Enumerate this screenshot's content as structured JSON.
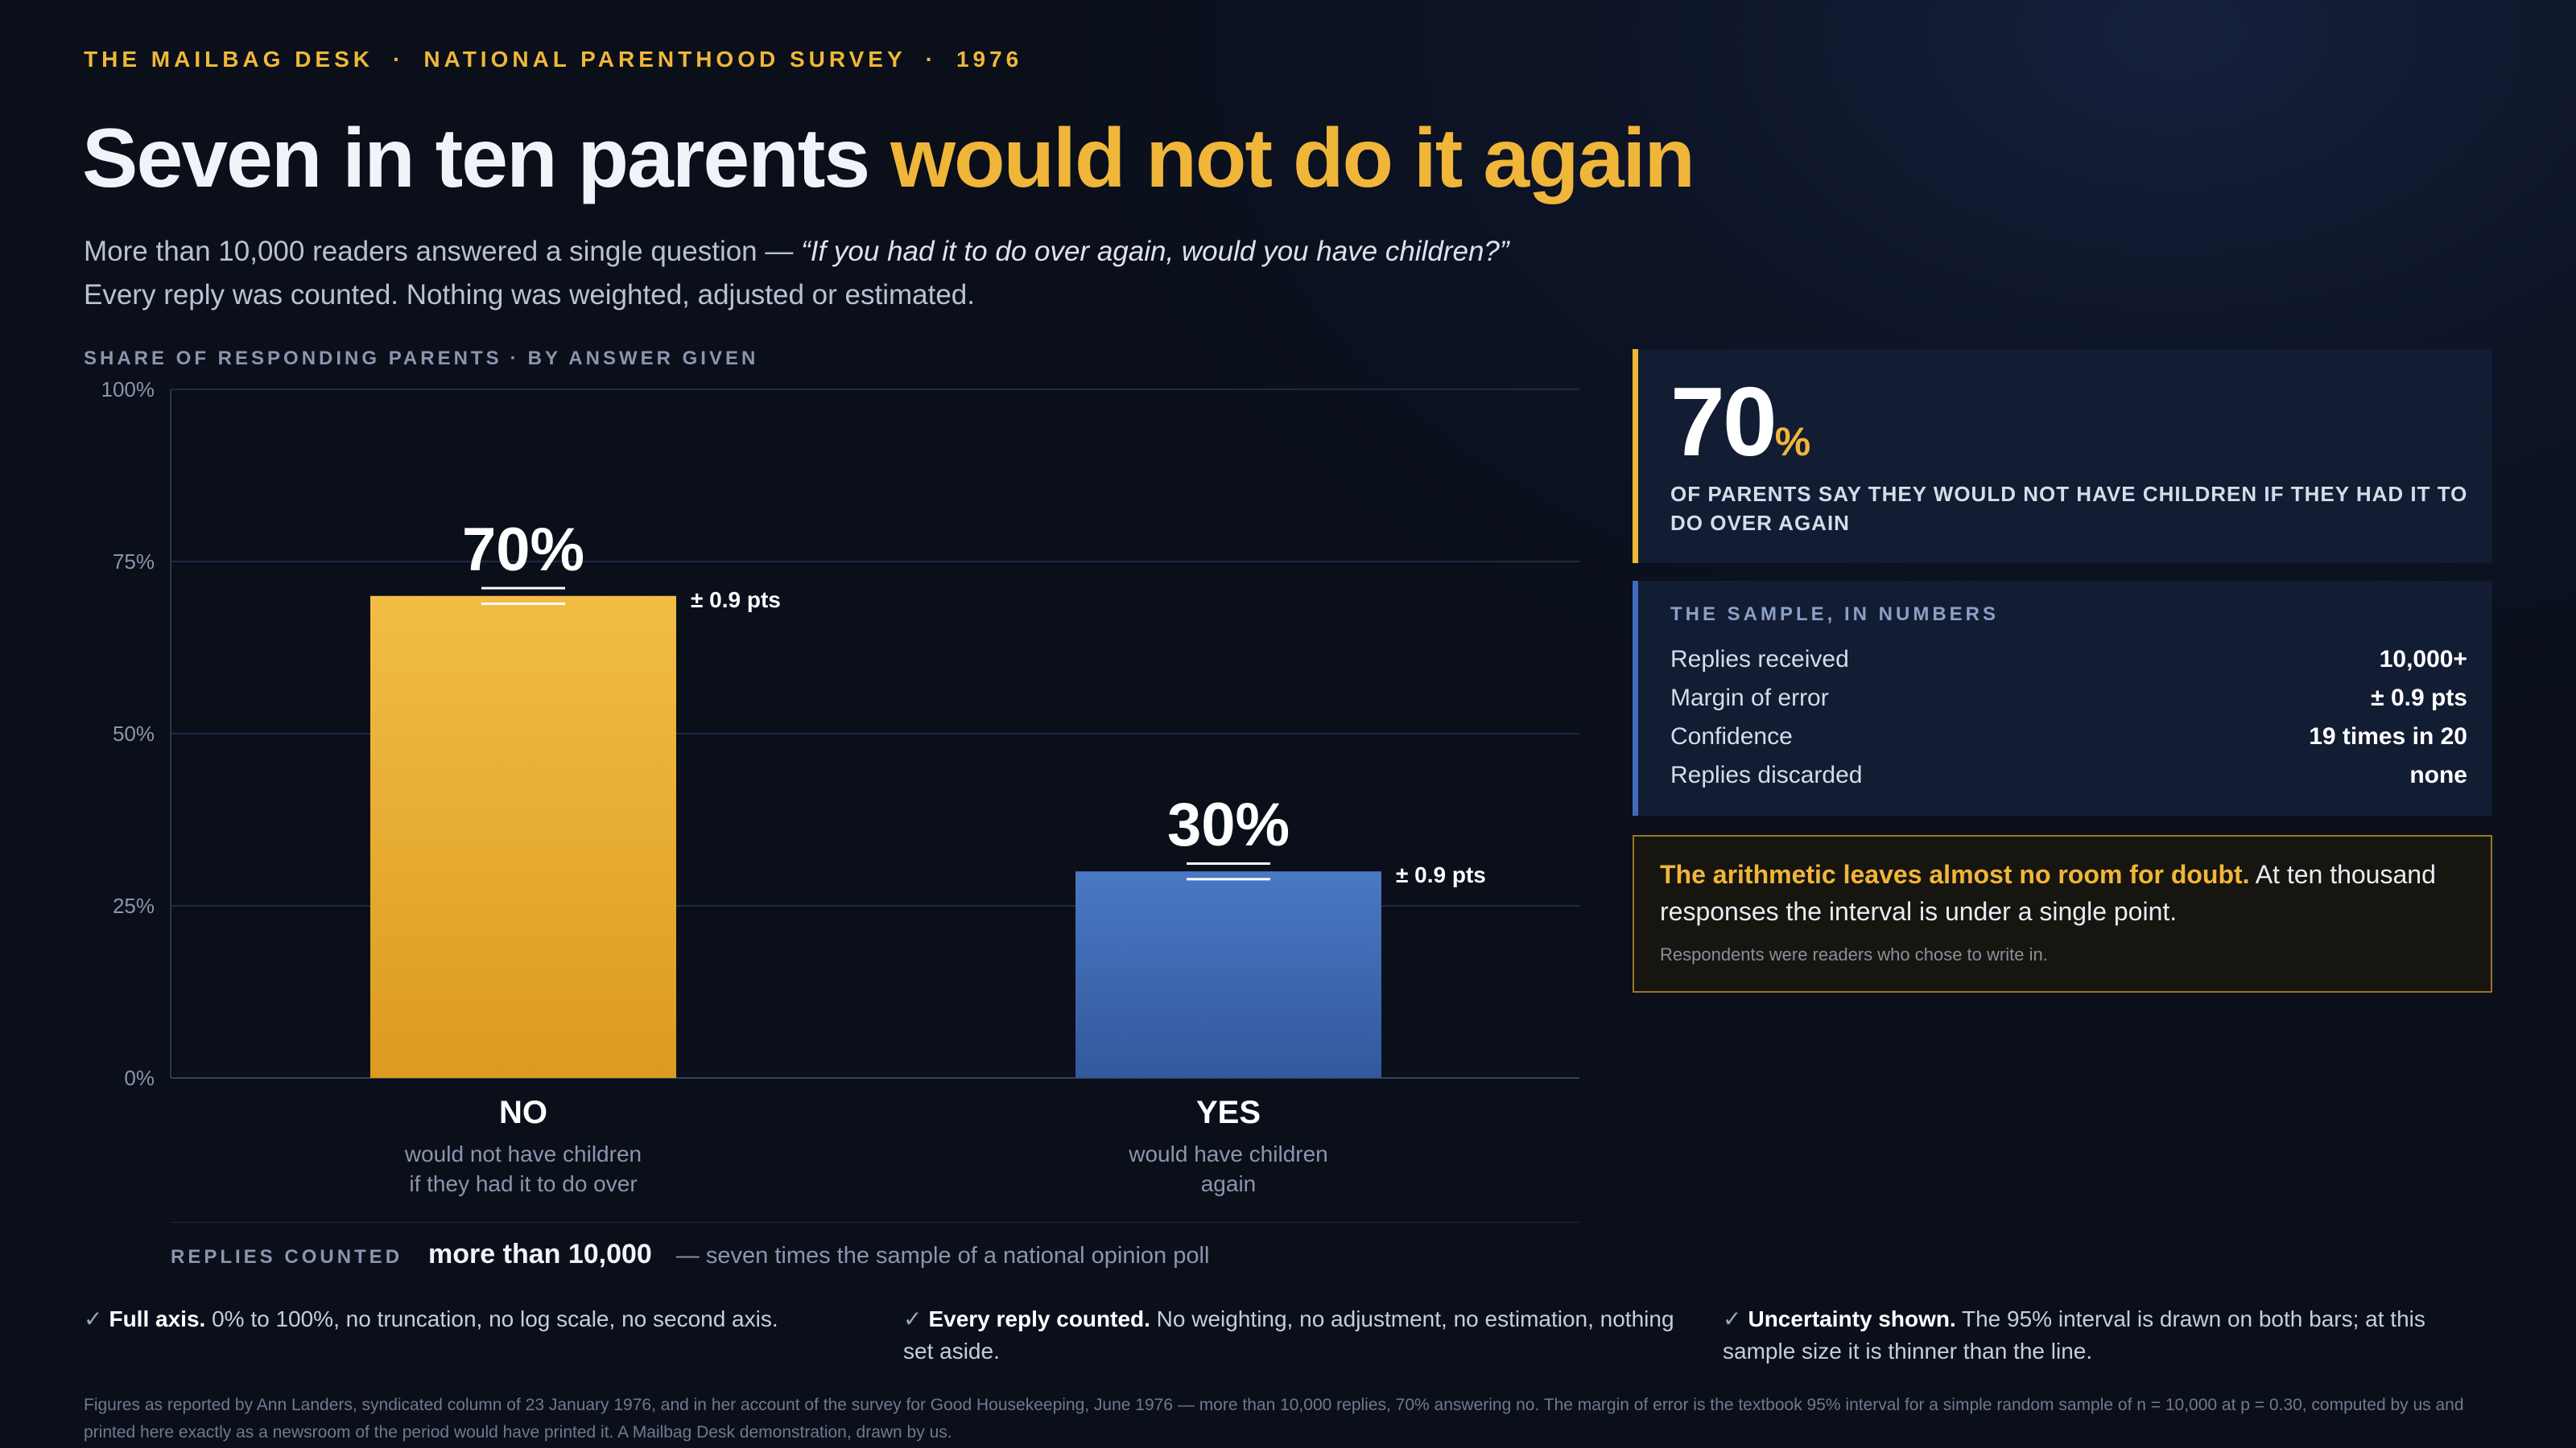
{
  "kicker": {
    "desk": "THE MAILBAG DESK",
    "survey": "NATIONAL PARENTHOOD SURVEY",
    "year": "1976",
    "separator": "·"
  },
  "headline": {
    "lead": "Seven in ten parents ",
    "accent": "would not do it again"
  },
  "subtitle": {
    "intro": "More than 10,000 readers answered a single question — ",
    "question": "“If you had it to do over again, would you have children?”",
    "line2": "Every reply was counted. Nothing was weighted, adjusted or estimated."
  },
  "section_label": {
    "left": "SHARE OF RESPONDING PARENTS",
    "sep": "·",
    "right": "BY ANSWER GIVEN"
  },
  "chart_data": {
    "type": "bar",
    "title": "",
    "categories": [
      "NO",
      "YES"
    ],
    "category_subtitles": [
      [
        "would not have children",
        "if they had it to do over"
      ],
      [
        "would have children",
        "again"
      ]
    ],
    "values": [
      70,
      30
    ],
    "value_labels": [
      "70%",
      "30%"
    ],
    "margin_of_error": 0.9,
    "error_labels": [
      "± 0.9 pts",
      "± 0.9 pts"
    ],
    "ylim": [
      0,
      100
    ],
    "yticks": [
      0,
      25,
      50,
      75,
      100
    ],
    "ytick_labels": [
      "0%",
      "25%",
      "50%",
      "75%",
      "100%"
    ],
    "grid": true,
    "colors": {
      "no_top": "#f2bd45",
      "no_bottom": "#dc9b20",
      "yes_top": "#4a78c4",
      "yes_bottom": "#33589c"
    }
  },
  "replies": {
    "label": "REPLIES COUNTED",
    "value": "more than 10,000",
    "note": "— seven times the sample of a national opinion poll"
  },
  "big_stat": {
    "number": "70",
    "unit": "%",
    "caption": "OF PARENTS SAY THEY WOULD NOT HAVE CHILDREN IF THEY HAD IT TO DO OVER AGAIN"
  },
  "sample": {
    "title": "THE SAMPLE, IN NUMBERS",
    "rows": [
      {
        "key": "Replies received",
        "value": "10,000+"
      },
      {
        "key": "Margin of error",
        "value": "± 0.9 pts"
      },
      {
        "key": "Confidence",
        "value": "19 times in 20"
      },
      {
        "key": "Replies discarded",
        "value": "none"
      }
    ]
  },
  "doubt": {
    "highlight": "The arithmetic leaves almost no room for doubt.",
    "text": " At ten thousand responses the interval is under a single point.",
    "foot": "Respondents were readers who chose to write in."
  },
  "checks": [
    {
      "tick": "✓",
      "title": "Full axis.",
      "text": " 0% to 100%, no truncation, no log scale, no second axis."
    },
    {
      "tick": "✓",
      "title": "Every reply counted.",
      "text": " No weighting, no adjustment, no estimation, nothing set aside."
    },
    {
      "tick": "✓",
      "title": "Uncertainty shown.",
      "text": " The 95% interval is drawn on both bars; at this sample size it is thinner than the line."
    }
  ],
  "footnote": "Figures as reported by Ann Landers, syndicated column of 23 January 1976, and in her account of the survey for Good Housekeeping, June 1976 — more than 10,000 replies, 70% answering no. The margin of error is the textbook 95% interval for a simple random sample of n = 10,000 at p = 0.30, computed by us and printed here exactly as a newsroom of the period would have printed it. A Mailbag Desk demonstration, drawn by us."
}
